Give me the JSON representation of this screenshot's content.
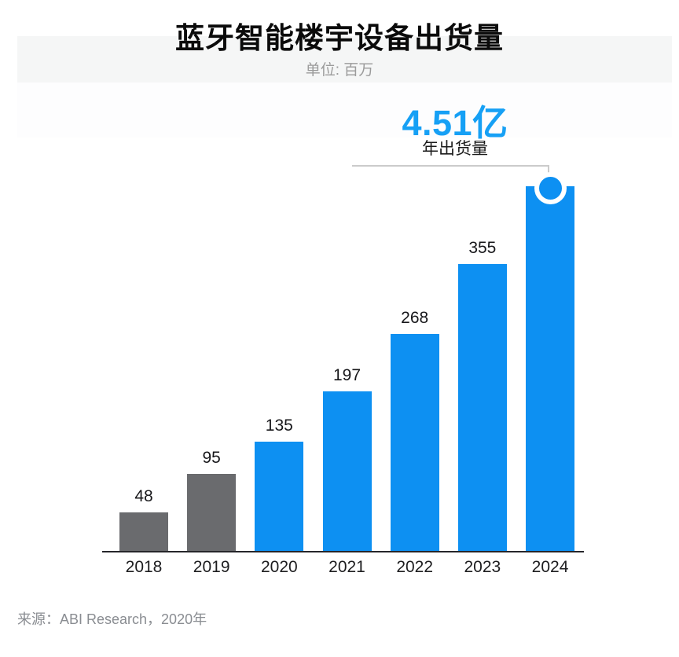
{
  "chart_data": {
    "type": "bar",
    "title": "蓝牙智能楼宇设备出货量",
    "subtitle": "单位: 百万",
    "categories": [
      "2018",
      "2019",
      "2020",
      "2021",
      "2022",
      "2023",
      "2024"
    ],
    "values": [
      48,
      95,
      135,
      197,
      268,
      355,
      451
    ],
    "value_labels": [
      "48",
      "95",
      "135",
      "197",
      "268",
      "355",
      ""
    ],
    "bar_colors": [
      "#6a6b6e",
      "#6a6b6e",
      "#0d90f2",
      "#0d90f2",
      "#0d90f2",
      "#0d90f2",
      "#0d90f2"
    ],
    "highlight": {
      "value_text": "4.51亿",
      "label": "年出货量",
      "target_category": "2024",
      "color": "#16a0f5"
    },
    "source": "来源：ABI Research，2020年",
    "xlabel": "",
    "ylabel": "",
    "ylim": [
      0,
      480
    ],
    "grid": false,
    "legend": null,
    "colors": {
      "bar_blue": "#0d90f2",
      "bar_gray": "#6a6b6e",
      "highlight_blue": "#16a0f5",
      "axis": "#26262a",
      "callout_line": "#cbcbcb",
      "title_text": "#0b0b0b",
      "subtitle_text": "#9b9b9b",
      "source_text": "#8a8d92"
    }
  }
}
